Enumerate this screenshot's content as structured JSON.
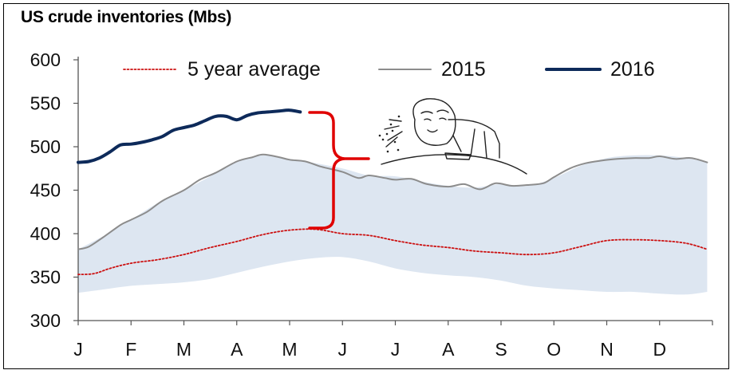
{
  "chart_data": {
    "type": "line",
    "title": "US crude inventories (Mbs)",
    "xlabel": "",
    "ylabel": "",
    "ylim": [
      300,
      600
    ],
    "yticks": [
      300,
      350,
      400,
      450,
      500,
      550,
      600
    ],
    "x_categories": [
      "J",
      "F",
      "M",
      "A",
      "M",
      "J",
      "J",
      "A",
      "S",
      "O",
      "N",
      "D"
    ],
    "legend": [
      "5 year average",
      "2015",
      "2016"
    ],
    "legend_position": "top",
    "grid": false,
    "colors": {
      "five_year_average": "#cc1111",
      "y2015": "#8c8c8c",
      "y2016": "#0d2a5a",
      "band": "#dde6f1",
      "annotation": "#e00000"
    },
    "annotation_image": "spit-take meme face",
    "series": [
      {
        "name": "5 year average",
        "style": "dotted",
        "x": [
          0,
          0.3,
          0.6,
          1.0,
          1.5,
          2.0,
          2.5,
          3.0,
          3.5,
          4.0,
          4.5,
          5.0,
          5.5,
          6.0,
          6.5,
          7.0,
          7.5,
          8.0,
          8.5,
          9.0,
          9.5,
          10.0,
          10.5,
          11.0,
          11.5,
          11.9
        ],
        "values": [
          353,
          354,
          360,
          366,
          370,
          376,
          384,
          391,
          399,
          404,
          405,
          400,
          398,
          392,
          387,
          384,
          380,
          378,
          376,
          378,
          385,
          392,
          393,
          392,
          389,
          382
        ]
      },
      {
        "name": "2015",
        "x": [
          0,
          0.2,
          0.5,
          0.8,
          1.0,
          1.3,
          1.6,
          2.0,
          2.3,
          2.6,
          3.0,
          3.3,
          3.5,
          3.8,
          4.0,
          4.3,
          4.6,
          5.0,
          5.3,
          5.5,
          5.8,
          6.0,
          6.3,
          6.6,
          7.0,
          7.3,
          7.6,
          7.9,
          8.2,
          8.5,
          8.8,
          9.0,
          9.3,
          9.6,
          9.9,
          10.2,
          10.5,
          10.8,
          11.0,
          11.3,
          11.6,
          11.9
        ],
        "values": [
          382,
          385,
          397,
          410,
          416,
          425,
          438,
          450,
          462,
          470,
          483,
          488,
          491,
          488,
          485,
          483,
          477,
          471,
          464,
          467,
          464,
          462,
          463,
          457,
          454,
          457,
          451,
          458,
          455,
          456,
          458,
          465,
          475,
          481,
          484,
          486,
          487,
          487,
          489,
          486,
          487,
          482
        ]
      },
      {
        "name": "2016",
        "x": [
          0,
          0.2,
          0.4,
          0.6,
          0.8,
          1.0,
          1.2,
          1.4,
          1.6,
          1.8,
          2.0,
          2.2,
          2.4,
          2.6,
          2.8,
          3.0,
          3.2,
          3.4,
          3.6,
          3.8,
          4.0,
          4.2
        ],
        "values": [
          482,
          483,
          487,
          494,
          502,
          503,
          505,
          508,
          512,
          519,
          522,
          525,
          530,
          535,
          535,
          531,
          536,
          539,
          540,
          541,
          542,
          540
        ]
      },
      {
        "name": "5-year range (band)",
        "type": "area",
        "x": [
          0,
          0.5,
          1.0,
          1.5,
          2.0,
          2.5,
          3.0,
          3.5,
          4.0,
          4.5,
          5.0,
          5.5,
          6.0,
          6.5,
          7.0,
          7.5,
          8.0,
          8.5,
          9.0,
          9.5,
          10.0,
          10.5,
          11.0,
          11.5,
          11.9
        ],
        "upper": [
          382,
          398,
          416,
          435,
          450,
          466,
          483,
          490,
          486,
          481,
          475,
          467,
          466,
          460,
          455,
          453,
          457,
          455,
          464,
          478,
          487,
          490,
          490,
          487,
          482
        ],
        "lower": [
          332,
          336,
          340,
          342,
          344,
          348,
          355,
          362,
          368,
          372,
          373,
          368,
          360,
          355,
          352,
          350,
          346,
          340,
          337,
          335,
          333,
          333,
          331,
          330,
          333
        ]
      }
    ]
  }
}
